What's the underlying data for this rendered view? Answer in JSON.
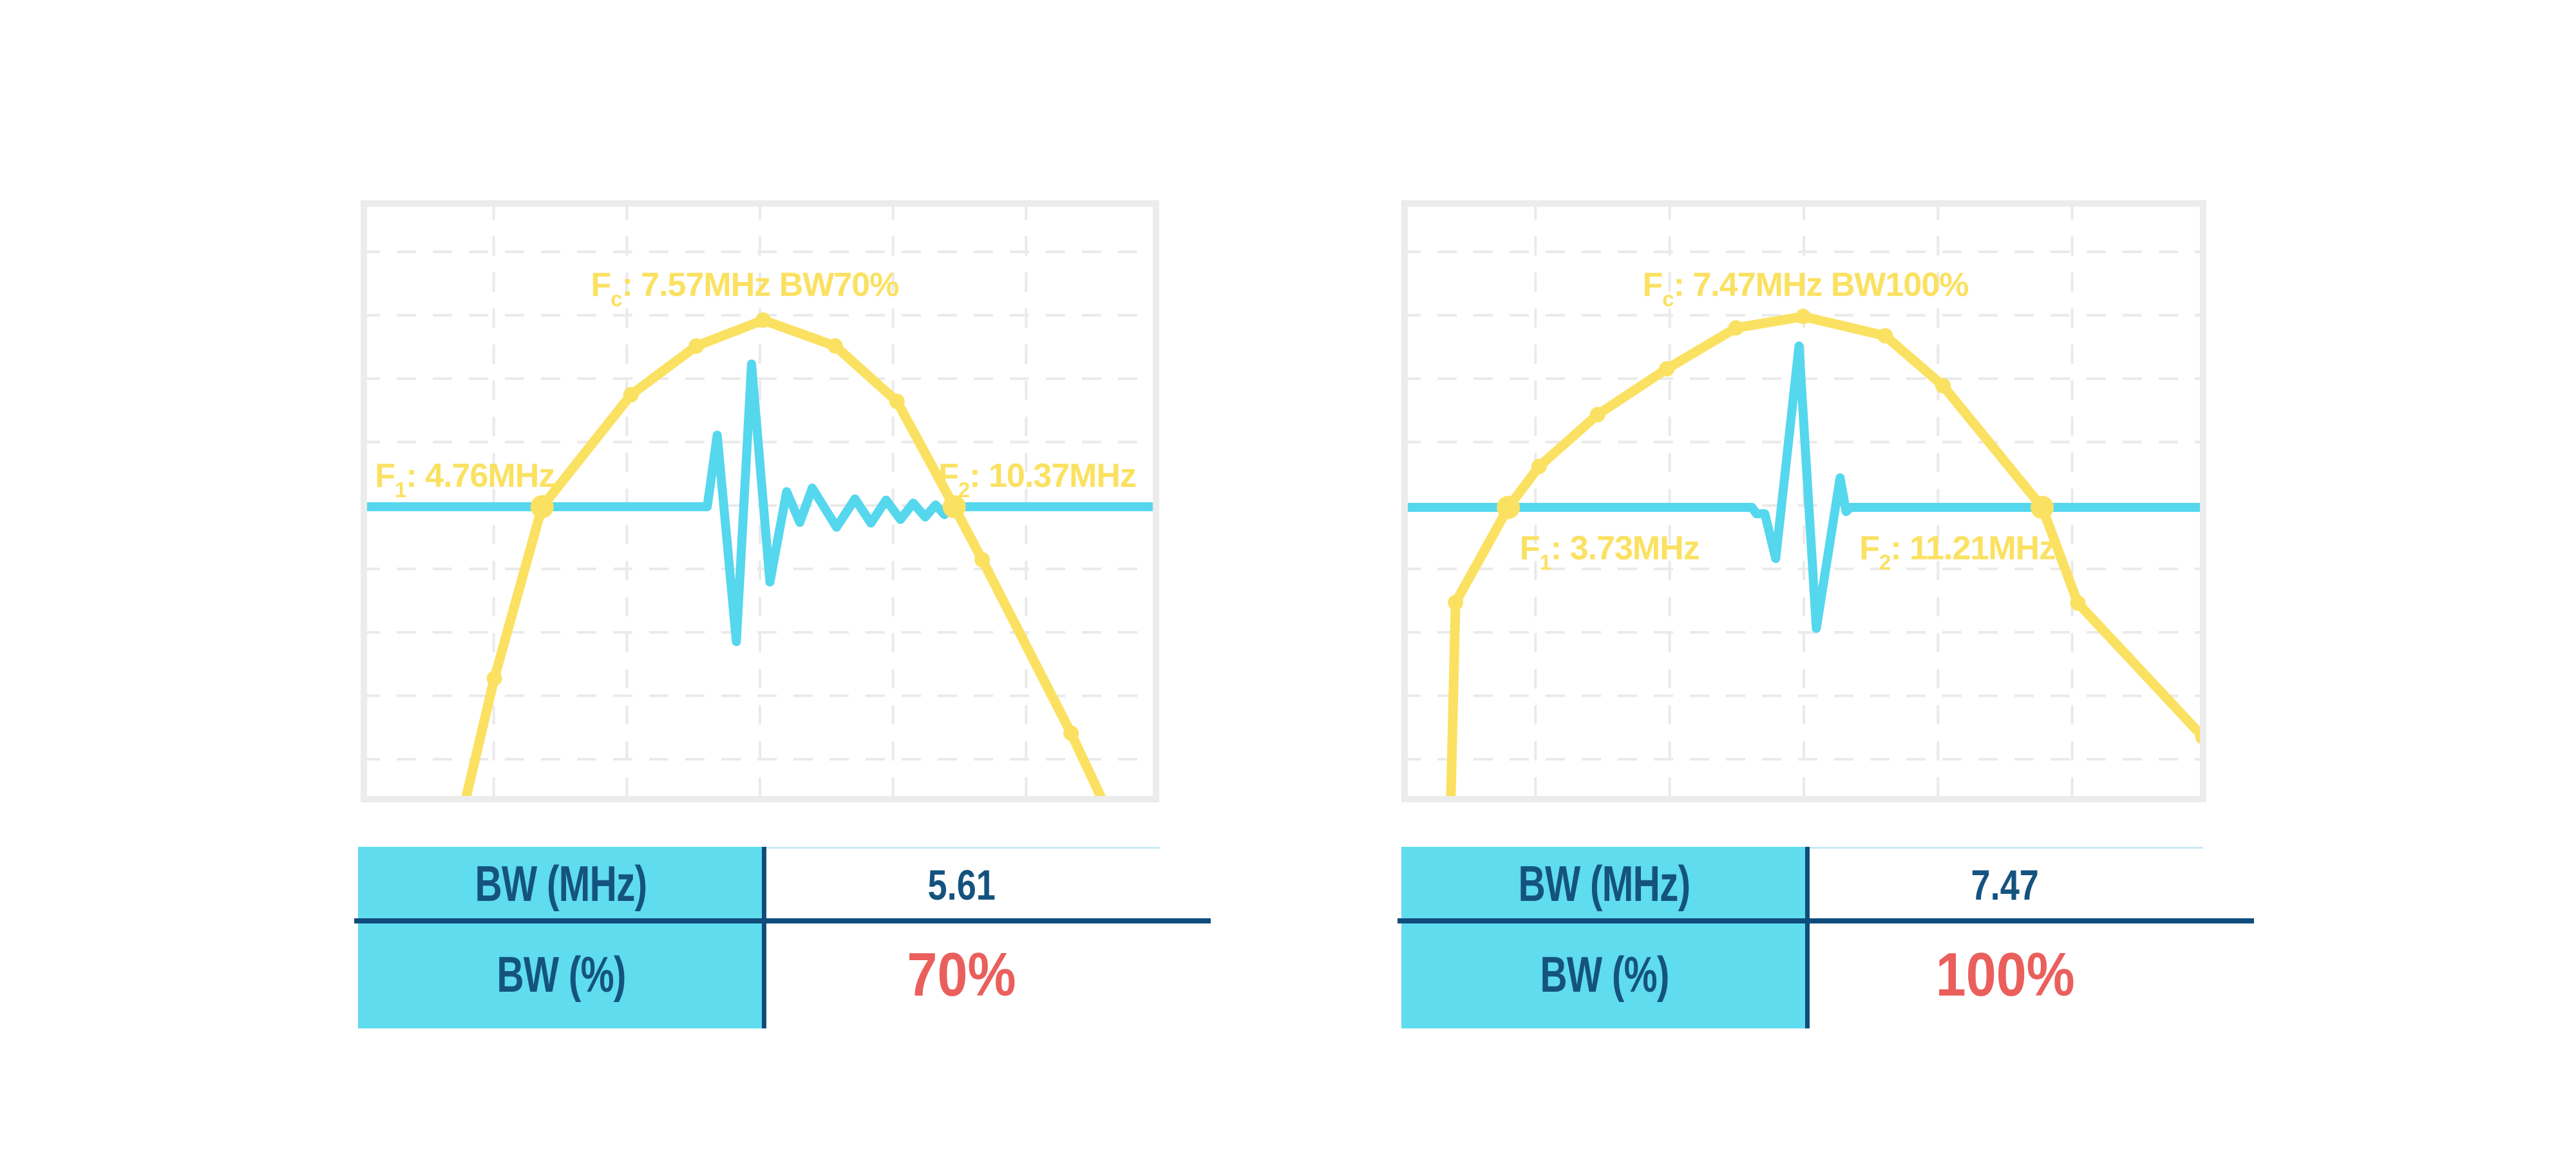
{
  "figure": {
    "description": "Two ultrasound transducer bandwidth figures: frequency spectrum (yellow polyline with markers) overlaid with time-domain pulse (cyan), each with a BW summary table below",
    "background": "#ffffff"
  },
  "colors": {
    "yellow": "#FBE161",
    "cyan_pulse": "#55D7EE",
    "table_cyan": "#5FDCEE",
    "navy": "#15537F",
    "divider_navy": "#0F4C7C",
    "red": "#EA5F5C",
    "chart_border": "#ECECEC",
    "grid": "#EAEAEA",
    "value_cell_top_border": "#C9EBF5"
  },
  "chart_data": [
    {
      "type": "line",
      "title": "Fc: 7.57MHz BW70%",
      "fc_mhz": 7.57,
      "f1_mhz": 4.76,
      "f2_mhz": 10.37,
      "bw_mhz": 5.61,
      "bw_percent": 70,
      "x_axis": {
        "unit": "MHz",
        "range": [
          2.29,
          13.16
        ],
        "ticks_visible": false
      },
      "y_axis": {
        "unit": "normalized level (fraction from top)",
        "range": [
          0,
          1
        ],
        "ticks_visible": false
      },
      "grid": "dashed",
      "baseline_level": 0.509,
      "series": [
        {
          "name": "frequency-spectrum",
          "color_key": "yellow",
          "points": [
            {
              "mhz": 3.69,
              "level": 1.01,
              "marker": "none"
            },
            {
              "mhz": 4.11,
              "level": 0.794,
              "marker": "small"
            },
            {
              "mhz": 4.76,
              "level": 0.509,
              "marker": "big"
            },
            {
              "mhz": 5.97,
              "level": 0.323,
              "marker": "small"
            },
            {
              "mhz": 6.86,
              "level": 0.242,
              "marker": "small"
            },
            {
              "mhz": 7.77,
              "level": 0.199,
              "marker": "small"
            },
            {
              "mhz": 8.75,
              "level": 0.242,
              "marker": "small"
            },
            {
              "mhz": 9.59,
              "level": 0.334,
              "marker": "small"
            },
            {
              "mhz": 10.37,
              "level": 0.509,
              "marker": "big"
            },
            {
              "mhz": 10.75,
              "level": 0.597,
              "marker": "small"
            },
            {
              "mhz": 11.96,
              "level": 0.885,
              "marker": "small"
            },
            {
              "mhz": 12.44,
              "level": 1.01,
              "marker": "none"
            }
          ]
        },
        {
          "name": "time-domain-pulse",
          "color_key": "cyan_pulse",
          "points_xfrac_level": [
            [
              0.0,
              0.509
            ],
            [
              0.434,
              0.509
            ],
            [
              0.4465,
              0.39
            ],
            [
              0.4705,
              0.733
            ],
            [
              0.4895,
              0.272
            ],
            [
              0.5125,
              0.634
            ],
            [
              0.5335,
              0.484
            ],
            [
              0.55,
              0.535
            ],
            [
              0.5655,
              0.478
            ],
            [
              0.596,
              0.543
            ],
            [
              0.619,
              0.496
            ],
            [
              0.639,
              0.536
            ],
            [
              0.658,
              0.498
            ],
            [
              0.676,
              0.53
            ],
            [
              0.692,
              0.503
            ],
            [
              0.707,
              0.526
            ],
            [
              0.72,
              0.506
            ],
            [
              0.731,
              0.522
            ],
            [
              0.7435,
              0.509
            ],
            [
              1.0,
              0.509
            ]
          ]
        }
      ],
      "annotations": {
        "fc": {
          "pre": "F",
          "sub": "c",
          "rest": ": 7.57MHz BW70%",
          "x_frac": 0.481,
          "level": 0.159,
          "anchor": "middle"
        },
        "f1": {
          "pre": "F",
          "sub": "1",
          "rest": ": 4.76MHz",
          "x_frac": 0.018,
          "level": 0.476,
          "anchor": "start"
        },
        "f2": {
          "pre": "F",
          "sub": "2",
          "rest": ": 10.37MHz",
          "x_frac": 0.7235,
          "level": 0.476,
          "anchor": "start"
        }
      },
      "table": {
        "rows": [
          {
            "label": "BW (MHz)",
            "value": "5.61"
          },
          {
            "label": "BW (%)",
            "value": "70%"
          }
        ]
      }
    },
    {
      "type": "line",
      "title": "Fc: 7.47MHz BW100%",
      "fc_mhz": 7.47,
      "f1_mhz": 3.73,
      "f2_mhz": 11.21,
      "bw_mhz": 7.47,
      "bw_percent": 100,
      "x_axis": {
        "unit": "MHz",
        "range": [
          2.23,
          13.51
        ],
        "ticks_visible": false
      },
      "y_axis": {
        "unit": "normalized level (fraction from top)",
        "range": [
          0,
          1
        ],
        "ticks_visible": false
      },
      "grid": "dashed",
      "baseline_level": 0.51,
      "series": [
        {
          "name": "frequency-spectrum",
          "color_key": "yellow",
          "points": [
            {
              "mhz": 2.92,
              "level": 1.01,
              "marker": "none"
            },
            {
              "mhz": 2.99,
              "level": 0.668,
              "marker": "small"
            },
            {
              "mhz": 3.73,
              "level": 0.51,
              "marker": "big"
            },
            {
              "mhz": 4.16,
              "level": 0.442,
              "marker": "small"
            },
            {
              "mhz": 4.98,
              "level": 0.356,
              "marker": "small"
            },
            {
              "mhz": 5.95,
              "level": 0.28,
              "marker": "small"
            },
            {
              "mhz": 6.92,
              "level": 0.212,
              "marker": "small"
            },
            {
              "mhz": 7.86,
              "level": 0.193,
              "marker": "small"
            },
            {
              "mhz": 9.01,
              "level": 0.225,
              "marker": "small"
            },
            {
              "mhz": 9.82,
              "level": 0.308,
              "marker": "small"
            },
            {
              "mhz": 11.21,
              "level": 0.51,
              "marker": "big"
            },
            {
              "mhz": 11.71,
              "level": 0.669,
              "marker": "small"
            },
            {
              "mhz": 13.46,
              "level": 0.891,
              "marker": "small"
            }
          ]
        },
        {
          "name": "time-domain-pulse",
          "color_key": "cyan_pulse",
          "points_xfrac_level": [
            [
              0.0,
              0.51
            ],
            [
              0.4355,
              0.51
            ],
            [
              0.441,
              0.5205
            ],
            [
              0.4515,
              0.5205
            ],
            [
              0.465,
              0.595
            ],
            [
              0.494,
              0.242
            ],
            [
              0.5155,
              0.711
            ],
            [
              0.545,
              0.461
            ],
            [
              0.5525,
              0.517
            ],
            [
              0.558,
              0.51
            ],
            [
              1.0,
              0.51
            ]
          ]
        }
      ],
      "annotations": {
        "fc": {
          "pre": "F",
          "sub": "c",
          "rest": ": 7.47MHz BW100%",
          "x_frac": 0.502,
          "level": 0.159,
          "anchor": "middle"
        },
        "f1": {
          "pre": "F",
          "sub": "1",
          "rest": ": 3.73MHz",
          "x_frac": 0.147,
          "level": 0.596,
          "anchor": "start"
        },
        "f2": {
          "pre": "F",
          "sub": "2",
          "rest": ": 11.21MHz",
          "x_frac": 0.569,
          "level": 0.596,
          "anchor": "start"
        }
      },
      "table": {
        "rows": [
          {
            "label": "BW (MHz)",
            "value": "7.47"
          },
          {
            "label": "BW (%)",
            "value": "100%"
          }
        ]
      }
    }
  ]
}
